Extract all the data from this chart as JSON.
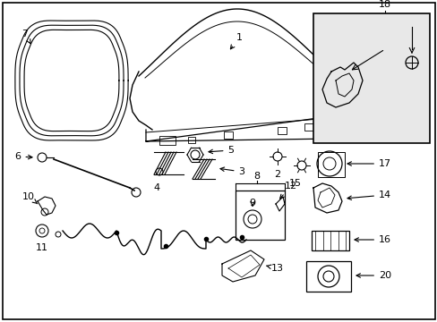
{
  "bg_color": "#ffffff",
  "line_color": "#000000",
  "inset_bg": "#e8e8e8",
  "font_size": 8
}
